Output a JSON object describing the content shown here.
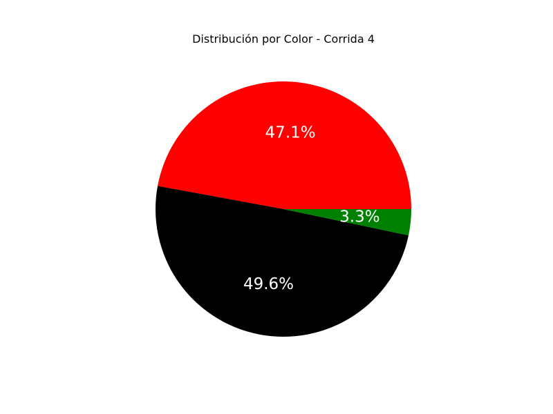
{
  "chart_data": {
    "type": "pie",
    "title": "Distribución por Color - Corrida 4",
    "start_angle_deg": 0,
    "direction": "counterclockwise",
    "slices": [
      {
        "value": 47.1,
        "label": "47.1%",
        "color": "#ff0000"
      },
      {
        "value": 49.6,
        "label": "49.6%",
        "color": "#000000"
      },
      {
        "value": 3.3,
        "label": "3.3%",
        "color": "#008000"
      }
    ]
  }
}
